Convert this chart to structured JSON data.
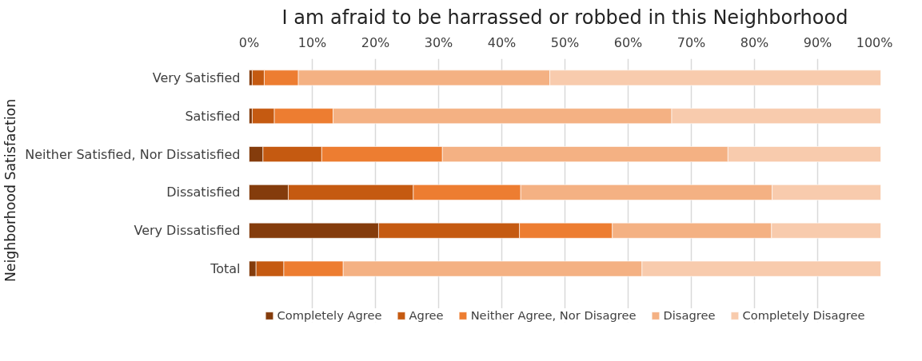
{
  "chart_data": {
    "type": "bar",
    "orientation": "horizontal",
    "stacked": true,
    "title": "I am afraid to be harrassed or robbed in this Neighborhood",
    "ylabel": "Neighborhood Satisfaction",
    "categories": [
      "Very Satisfied",
      "Satisfied",
      "Neither Satisfied, Nor Dissatisfied",
      "Dissatisfied",
      "Very Dissatisfied",
      "Total"
    ],
    "series": [
      {
        "name": "Completely Agree",
        "color": "#843c0c",
        "values": [
          0.5,
          0.5,
          2.2,
          6.2,
          20.5,
          1.1
        ]
      },
      {
        "name": "Agree",
        "color": "#c55a11",
        "values": [
          1.9,
          3.5,
          9.3,
          19.8,
          22.3,
          4.4
        ]
      },
      {
        "name": "Neither Agree, Nor Disagree",
        "color": "#ed7d31",
        "values": [
          5.4,
          9.3,
          19.1,
          17.0,
          14.7,
          9.4
        ]
      },
      {
        "name": "Disagree",
        "color": "#f4b183",
        "values": [
          39.8,
          53.6,
          45.2,
          39.8,
          25.2,
          47.3
        ]
      },
      {
        "name": "Completely Disagree",
        "color": "#f8cbad",
        "values": [
          52.4,
          33.1,
          24.2,
          17.2,
          17.3,
          37.8
        ]
      }
    ],
    "xlim": [
      0,
      100
    ],
    "xticks": [
      {
        "value": 0,
        "label": "0%"
      },
      {
        "value": 10,
        "label": "10%"
      },
      {
        "value": 20,
        "label": "20%"
      },
      {
        "value": 30,
        "label": "30%"
      },
      {
        "value": 40,
        "label": "40%"
      },
      {
        "value": 50,
        "label": "50%"
      },
      {
        "value": 60,
        "label": "60%"
      },
      {
        "value": 70,
        "label": "70%"
      },
      {
        "value": 80,
        "label": "80%"
      },
      {
        "value": 90,
        "label": "90%"
      },
      {
        "value": 100,
        "label": "100%"
      }
    ],
    "grid": "x",
    "legend": "bottom"
  }
}
